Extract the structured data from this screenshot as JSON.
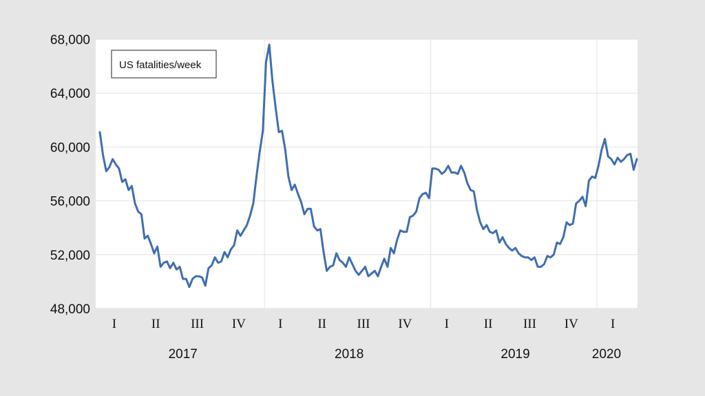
{
  "chart_data": {
    "type": "line",
    "title": "",
    "xlabel": "",
    "ylabel": "",
    "legend": [
      "US fatalities/week"
    ],
    "legend_placement": "top-left",
    "ylim": [
      48000,
      68000
    ],
    "yticks": [
      48000,
      52000,
      56000,
      60000,
      64000,
      68000
    ],
    "ytick_labels": [
      "48,000",
      "52,000",
      "56,000",
      "60,000",
      "64,000",
      "68,000"
    ],
    "grid": true,
    "line_color": "#3f6db0",
    "quarter_labels": [
      "I",
      "II",
      "III",
      "IV",
      "I",
      "II",
      "III",
      "IV",
      "I",
      "II",
      "III",
      "IV",
      "I"
    ],
    "year_labels": [
      "2017",
      "2018",
      "2019",
      "2020"
    ],
    "series": [
      {
        "name": "US fatalities/week",
        "start_week": "2017 week 1",
        "values": [
          61100,
          59400,
          58200,
          58500,
          59100,
          58700,
          58400,
          57400,
          57600,
          56800,
          57100,
          55800,
          55200,
          55000,
          53200,
          53400,
          52800,
          52100,
          52600,
          51100,
          51400,
          51500,
          51000,
          51400,
          50900,
          51100,
          50200,
          50200,
          49600,
          50200,
          50400,
          50400,
          50300,
          49700,
          51000,
          51200,
          51800,
          51400,
          51500,
          52200,
          51800,
          52400,
          52700,
          53800,
          53400,
          53800,
          54200,
          54900,
          55800,
          57800,
          59600,
          61200,
          66300,
          67600,
          64900,
          62900,
          61100,
          61200,
          59800,
          57800,
          56800,
          57200,
          56500,
          55900,
          55000,
          55400,
          55400,
          54100,
          53800,
          53900,
          52200,
          50800,
          51100,
          51200,
          52100,
          51600,
          51400,
          51100,
          51800,
          51300,
          50800,
          50500,
          50800,
          51100,
          50400,
          50600,
          50800,
          50400,
          51100,
          51700,
          51100,
          52500,
          52100,
          53100,
          53800,
          53700,
          53700,
          54800,
          54900,
          55200,
          56200,
          56500,
          56600,
          56200,
          58400,
          58400,
          58300,
          58000,
          58200,
          58600,
          58100,
          58100,
          58000,
          58600,
          58100,
          57300,
          56800,
          56700,
          55300,
          54400,
          53900,
          54200,
          53700,
          53600,
          53800,
          52900,
          53300,
          52800,
          52500,
          52300,
          52500,
          52100,
          51900,
          51800,
          51800,
          51600,
          51800,
          51100,
          51100,
          51300,
          51900,
          51800,
          52000,
          52900,
          52800,
          53300,
          54400,
          54200,
          54300,
          55800,
          56000,
          56300,
          55600,
          57500,
          57800,
          57700,
          58600,
          59800,
          60600,
          59300,
          59100,
          58700,
          59200,
          58900,
          59100,
          59400,
          59500,
          58300,
          59100
        ]
      }
    ]
  }
}
